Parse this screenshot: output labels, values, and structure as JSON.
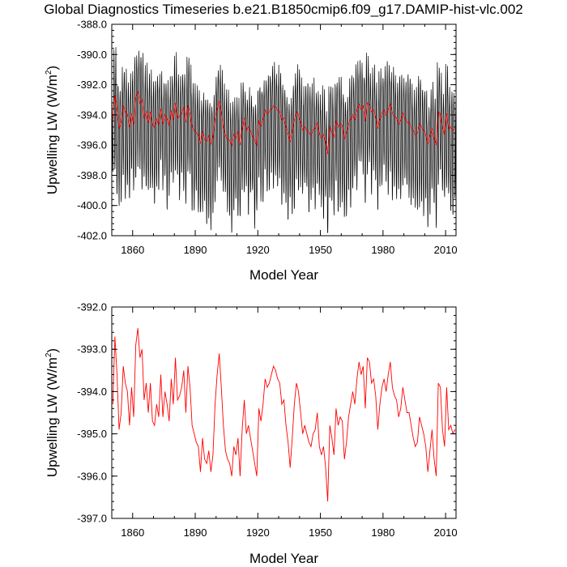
{
  "title": "Global Diagnostics Timeseries b.e21.B1850cmip6.f09_g17.DAMIP-hist-vlc.002",
  "colors": {
    "monthly_series": "#000000",
    "annual_series": "#ff0000"
  },
  "chart_data": [
    {
      "type": "line",
      "panel": "top",
      "xlabel": "Model Year",
      "ylabel_main": "Upwelling LW (W/m",
      "ylabel_sup": "2",
      "ylabel_close": ")",
      "xlim": [
        1850,
        2015
      ],
      "ylim": [
        -402.0,
        -388.0
      ],
      "xticks": [
        1860,
        1890,
        1920,
        1950,
        1980,
        2010
      ],
      "xtick_labels": [
        "1860",
        "1890",
        "1920",
        "1950",
        "1980",
        "2010"
      ],
      "yticks": [
        -388.0,
        -390.0,
        -392.0,
        -394.0,
        -396.0,
        -398.0,
        -400.0,
        -402.0
      ],
      "ytick_labels": [
        "-388.0",
        "-390.0",
        "-392.0",
        "-394.0",
        "-396.0",
        "-398.0",
        "-400.0",
        "-402.0"
      ],
      "grid": false,
      "monthly_series": {
        "note_values": "monthly global-mean values; each year swings between the listed annual_max and annual_min",
        "years": [
          1850,
          1851,
          1852,
          1853,
          1854,
          1855,
          1856,
          1857,
          1858,
          1859,
          1860,
          1861,
          1862,
          1863,
          1864,
          1865,
          1866,
          1867,
          1868,
          1869,
          1870,
          1871,
          1872,
          1873,
          1874,
          1875,
          1876,
          1877,
          1878,
          1879,
          1880,
          1881,
          1882,
          1883,
          1884,
          1885,
          1886,
          1887,
          1888,
          1889,
          1890,
          1891,
          1892,
          1893,
          1894,
          1895,
          1896,
          1897,
          1898,
          1899,
          1900,
          1901,
          1902,
          1903,
          1904,
          1905,
          1906,
          1907,
          1908,
          1909,
          1910,
          1911,
          1912,
          1913,
          1914,
          1915,
          1916,
          1917,
          1918,
          1919,
          1920,
          1921,
          1922,
          1923,
          1924,
          1925,
          1926,
          1927,
          1928,
          1929,
          1930,
          1931,
          1932,
          1933,
          1934,
          1935,
          1936,
          1937,
          1938,
          1939,
          1940,
          1941,
          1942,
          1943,
          1944,
          1945,
          1946,
          1947,
          1948,
          1949,
          1950,
          1951,
          1952,
          1953,
          1954,
          1955,
          1956,
          1957,
          1958,
          1959,
          1960,
          1961,
          1962,
          1963,
          1964,
          1965,
          1966,
          1967,
          1968,
          1969,
          1970,
          1971,
          1972,
          1973,
          1974,
          1975,
          1976,
          1977,
          1978,
          1979,
          1980,
          1981,
          1982,
          1983,
          1984,
          1985,
          1986,
          1987,
          1988,
          1989,
          1990,
          1991,
          1992,
          1993,
          1994,
          1995,
          1996,
          1997,
          1998,
          1999,
          2000,
          2001,
          2002,
          2003,
          2004,
          2005,
          2006,
          2007,
          2008,
          2009,
          2010,
          2011,
          2012,
          2013,
          2014
        ]
      }
    },
    {
      "type": "line",
      "panel": "bottom",
      "xlabel": "Model Year",
      "ylabel_main": "Upwelling LW (W/m",
      "ylabel_sup": "2",
      "ylabel_close": ")",
      "xlim": [
        1850,
        2015
      ],
      "ylim": [
        -397.0,
        -392.0
      ],
      "xticks": [
        1860,
        1890,
        1920,
        1950,
        1980,
        2010
      ],
      "xtick_labels": [
        "1860",
        "1890",
        "1920",
        "1950",
        "1980",
        "2010"
      ],
      "yticks": [
        -392.0,
        -393.0,
        -394.0,
        -395.0,
        -396.0,
        -397.0
      ],
      "ytick_labels": [
        "-392.0",
        "-393.0",
        "-394.0",
        "-395.0",
        "-396.0",
        "-397.0"
      ],
      "grid": false,
      "annual_series": {
        "x": [
          1850,
          1851,
          1852,
          1853,
          1854,
          1855,
          1856,
          1857,
          1858,
          1859,
          1860,
          1861,
          1862,
          1863,
          1864,
          1865,
          1866,
          1867,
          1868,
          1869,
          1870,
          1871,
          1872,
          1873,
          1874,
          1875,
          1876,
          1877,
          1878,
          1879,
          1880,
          1881,
          1882,
          1883,
          1884,
          1885,
          1886,
          1887,
          1888,
          1889,
          1890,
          1891,
          1892,
          1893,
          1894,
          1895,
          1896,
          1897,
          1898,
          1899,
          1900,
          1901,
          1902,
          1903,
          1904,
          1905,
          1906,
          1907,
          1908,
          1909,
          1910,
          1911,
          1912,
          1913,
          1914,
          1915,
          1916,
          1917,
          1918,
          1919,
          1920,
          1921,
          1922,
          1923,
          1924,
          1925,
          1926,
          1927,
          1928,
          1929,
          1930,
          1931,
          1932,
          1933,
          1934,
          1935,
          1936,
          1937,
          1938,
          1939,
          1940,
          1941,
          1942,
          1943,
          1944,
          1945,
          1946,
          1947,
          1948,
          1949,
          1950,
          1951,
          1952,
          1953,
          1954,
          1955,
          1956,
          1957,
          1958,
          1959,
          1960,
          1961,
          1962,
          1963,
          1964,
          1965,
          1966,
          1967,
          1968,
          1969,
          1970,
          1971,
          1972,
          1973,
          1974,
          1975,
          1976,
          1977,
          1978,
          1979,
          1980,
          1981,
          1982,
          1983,
          1984,
          1985,
          1986,
          1987,
          1988,
          1989,
          1990,
          1991,
          1992,
          1993,
          1994,
          1995,
          1996,
          1997,
          1998,
          1999,
          2000,
          2001,
          2002,
          2003,
          2004,
          2005,
          2006,
          2007,
          2008,
          2009,
          2010,
          2011,
          2012,
          2013,
          2014
        ],
        "y": [
          -394.3,
          -392.7,
          -393.6,
          -394.9,
          -394.5,
          -393.4,
          -393.8,
          -394.0,
          -394.8,
          -393.9,
          -394.6,
          -392.9,
          -392.5,
          -393.2,
          -393.0,
          -394.2,
          -393.8,
          -394.5,
          -393.8,
          -394.7,
          -394.8,
          -394.3,
          -394.6,
          -393.6,
          -394.6,
          -394.0,
          -394.3,
          -394.7,
          -393.7,
          -394.3,
          -393.2,
          -394.2,
          -394.1,
          -393.9,
          -393.5,
          -394.5,
          -393.4,
          -393.9,
          -394.8,
          -395.0,
          -395.2,
          -395.3,
          -395.9,
          -395.1,
          -395.6,
          -395.7,
          -395.4,
          -395.9,
          -395.5,
          -394.3,
          -393.6,
          -393.1,
          -393.9,
          -394.8,
          -395.4,
          -395.6,
          -395.7,
          -396.0,
          -395.3,
          -395.5,
          -395.1,
          -396.0,
          -394.9,
          -394.2,
          -395.0,
          -394.8,
          -395.1,
          -395.4,
          -395.7,
          -396.0,
          -394.4,
          -394.7,
          -394.3,
          -393.7,
          -393.9,
          -393.8,
          -393.6,
          -393.4,
          -393.5,
          -393.7,
          -393.8,
          -394.3,
          -394.2,
          -394.8,
          -395.2,
          -395.8,
          -395.1,
          -394.3,
          -393.8,
          -394.0,
          -394.5,
          -395.0,
          -394.8,
          -395.0,
          -395.2,
          -395.3,
          -395.0,
          -394.9,
          -394.5,
          -395.3,
          -395.5,
          -395.3,
          -395.8,
          -396.6,
          -394.8,
          -395.1,
          -395.5,
          -394.4,
          -394.8,
          -394.6,
          -394.7,
          -395.6,
          -395.2,
          -394.6,
          -394.3,
          -394.0,
          -394.3,
          -393.7,
          -393.3,
          -393.6,
          -393.4,
          -394.4,
          -393.2,
          -393.3,
          -393.8,
          -393.7,
          -394.1,
          -394.9,
          -394.3,
          -393.9,
          -393.7,
          -394.0,
          -393.6,
          -393.3,
          -393.9,
          -394.1,
          -394.2,
          -394.6,
          -394.4,
          -393.9,
          -394.2,
          -394.5,
          -394.5,
          -394.8,
          -395.1,
          -395.3,
          -395.2,
          -394.6,
          -394.8,
          -395.0,
          -395.3,
          -395.9,
          -395.4,
          -394.9,
          -395.6,
          -396.0,
          -393.8,
          -393.9,
          -394.9,
          -395.3,
          -393.9,
          -394.9,
          -394.8,
          -395.0,
          -394.9
        ],
        "color": "#ff0000"
      }
    }
  ]
}
